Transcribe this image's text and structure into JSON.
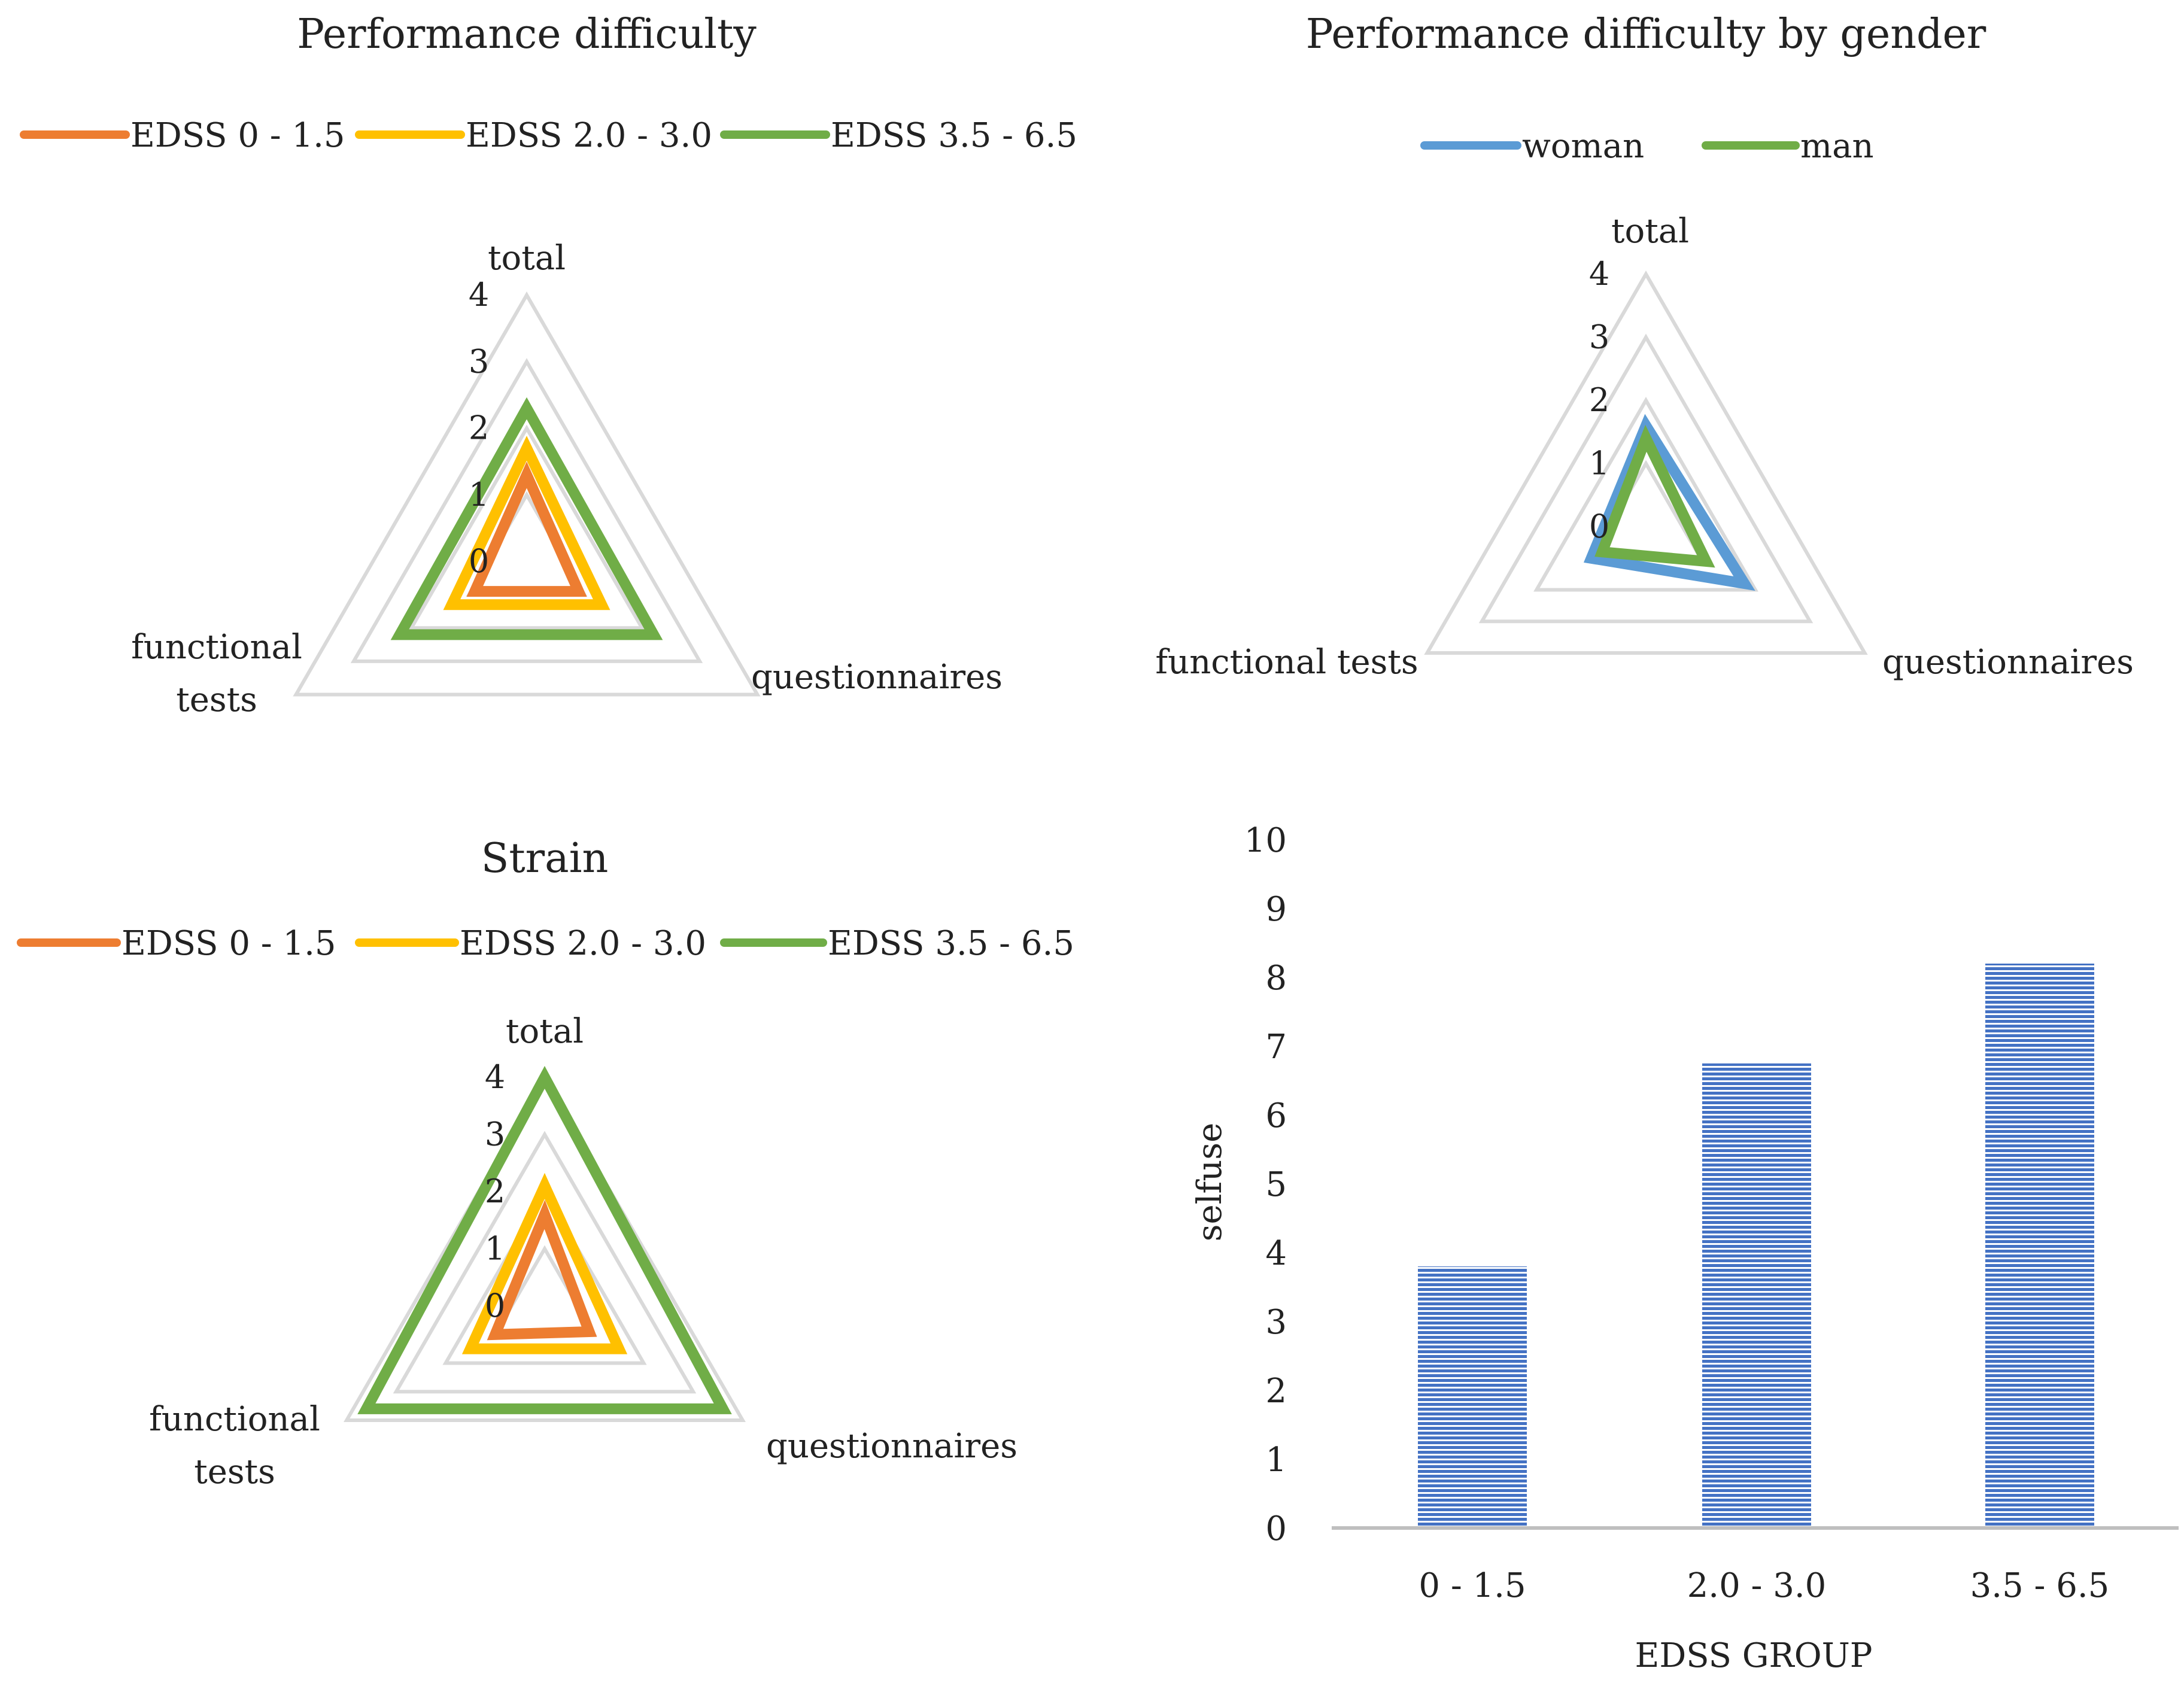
{
  "chart_data": [
    {
      "id": "perf",
      "type": "radar",
      "title": "Performance difficulty",
      "axes": [
        {
          "key": "total",
          "lines": [
            "total"
          ]
        },
        {
          "key": "questionnaires",
          "lines": [
            "questionnaires"
          ]
        },
        {
          "key": "functional_tests",
          "lines": [
            "functional",
            "tests"
          ]
        }
      ],
      "rmax": 4,
      "ticks": [
        "0",
        "1",
        "2",
        "3",
        "4"
      ],
      "series": [
        {
          "name": "EDSS 0 - 1.5",
          "color": "#ED7D31",
          "values": [
            1.3,
            0.9,
            0.9
          ]
        },
        {
          "name": "EDSS 2.0 - 3.0",
          "color": "#FFC000",
          "values": [
            1.7,
            1.3,
            1.3
          ]
        },
        {
          "name": "EDSS 3.5 - 6.5",
          "color": "#70AD47",
          "values": [
            2.3,
            2.2,
            2.2
          ]
        }
      ]
    },
    {
      "id": "gender",
      "type": "radar",
      "title": "Performance difficulty by gender",
      "axes": [
        {
          "key": "total",
          "lines": [
            "total"
          ]
        },
        {
          "key": "questionnaires",
          "lines": [
            "questionnaires"
          ]
        },
        {
          "key": "functional_tests",
          "lines": [
            "functional tests"
          ]
        }
      ],
      "rmax": 4,
      "ticks": [
        "0",
        "1",
        "2",
        "3",
        "4"
      ],
      "series": [
        {
          "name": "woman",
          "color": "#5B9BD5",
          "values": [
            1.6,
            1.8,
            1.0
          ]
        },
        {
          "name": "man",
          "color": "#70AD47",
          "values": [
            1.4,
            1.1,
            0.8
          ]
        }
      ]
    },
    {
      "id": "strain",
      "type": "radar",
      "title": "Strain",
      "axes": [
        {
          "key": "total",
          "lines": [
            "total"
          ]
        },
        {
          "key": "questionnaires",
          "lines": [
            "questionnaires"
          ]
        },
        {
          "key": "functional_tests",
          "lines": [
            "functional",
            "tests"
          ]
        }
      ],
      "rmax": 4,
      "ticks": [
        "0",
        "1",
        "2",
        "3",
        "4"
      ],
      "series": [
        {
          "name": "EDSS 0 - 1.5",
          "color": "#ED7D31",
          "values": [
            1.6,
            0.9,
            1.0
          ]
        },
        {
          "name": "EDSS 2.0 - 3.0",
          "color": "#FFC000",
          "values": [
            2.1,
            1.5,
            1.5
          ]
        },
        {
          "name": "EDSS 3.5 - 6.5",
          "color": "#70AD47",
          "values": [
            4.0,
            3.6,
            3.6
          ]
        }
      ]
    },
    {
      "id": "selfuse",
      "type": "bar",
      "title": "",
      "categories": [
        "0 - 1.5",
        "2.0 - 3.0",
        "3.5 - 6.5"
      ],
      "values": [
        3.8,
        6.75,
        8.2
      ],
      "color": "#4472C4",
      "xlabel": "EDSS GROUP",
      "ylabel": "selfuse",
      "ylim": [
        0,
        10
      ],
      "yticks": [
        "0",
        "1",
        "2",
        "3",
        "4",
        "5",
        "6",
        "7",
        "8",
        "9",
        "10"
      ]
    }
  ]
}
